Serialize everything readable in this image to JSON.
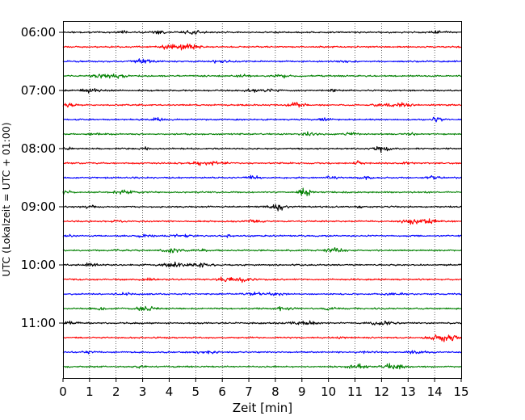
{
  "chart_data": {
    "type": "line",
    "title": "",
    "xlabel": "Zeit  [min]",
    "ylabel": "UTC (Lokalzeit = UTC + 01:00)",
    "xlim": [
      0,
      15
    ],
    "x_ticks": [
      "0",
      "1",
      "2",
      "3",
      "4",
      "5",
      "6",
      "7",
      "8",
      "9",
      "10",
      "11",
      "12",
      "13",
      "14",
      "15"
    ],
    "vertical_grid": "dotted",
    "y_tick_labels": [
      "06:00",
      "07:00",
      "08:00",
      "09:00",
      "10:00",
      "11:00"
    ],
    "trace_minutes": 15,
    "trace_colors": [
      "#000000",
      "#ff0000",
      "#0000ff",
      "#008000"
    ],
    "traces": [
      {
        "start": "06:00",
        "color": "#000000"
      },
      {
        "start": "06:15",
        "color": "#ff0000"
      },
      {
        "start": "06:30",
        "color": "#0000ff"
      },
      {
        "start": "06:45",
        "color": "#008000"
      },
      {
        "start": "07:00",
        "color": "#000000"
      },
      {
        "start": "07:15",
        "color": "#ff0000"
      },
      {
        "start": "07:30",
        "color": "#0000ff"
      },
      {
        "start": "07:45",
        "color": "#008000"
      },
      {
        "start": "08:00",
        "color": "#000000"
      },
      {
        "start": "08:15",
        "color": "#ff0000"
      },
      {
        "start": "08:30",
        "color": "#0000ff"
      },
      {
        "start": "08:45",
        "color": "#008000"
      },
      {
        "start": "09:00",
        "color": "#000000"
      },
      {
        "start": "09:15",
        "color": "#ff0000"
      },
      {
        "start": "09:30",
        "color": "#0000ff"
      },
      {
        "start": "09:45",
        "color": "#008000"
      },
      {
        "start": "10:00",
        "color": "#000000"
      },
      {
        "start": "10:15",
        "color": "#ff0000"
      },
      {
        "start": "10:30",
        "color": "#0000ff"
      },
      {
        "start": "10:45",
        "color": "#008000"
      },
      {
        "start": "11:00",
        "color": "#000000"
      },
      {
        "start": "11:15",
        "color": "#ff0000"
      },
      {
        "start": "11:30",
        "color": "#0000ff"
      },
      {
        "start": "11:45",
        "color": "#008000"
      }
    ]
  }
}
